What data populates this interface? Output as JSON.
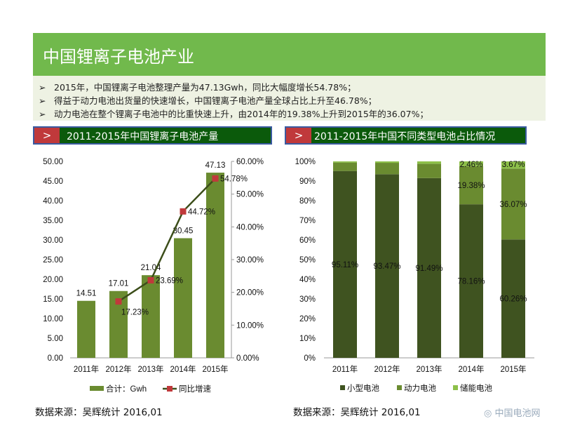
{
  "header": {
    "title": "中国锂离子电池产业"
  },
  "bullets": [
    "2015年，中国锂离子电池整理产量为47.13Gwh，同比大幅度增长54.78%；",
    "得益于动力电池出货量的快速增长，中国锂离子电池产量全球占比上升至46.78%；",
    "动力电池在整个锂离子电池中的比重快速上升，由2014年的19.38%上升到2015年的36.07%；"
  ],
  "bullet_icon": "arrow-right-icon",
  "section_marker": ">",
  "colors": {
    "title_green": "#71b94c",
    "header_green": "#0b5a0b",
    "marker_red": "#c0393b",
    "bar_green": "#6a8b30",
    "line": "#3c4e1a",
    "small": "#3f5320",
    "power": "#6a8b30",
    "storage": "#8dc049"
  },
  "chart_data": [
    {
      "type": "bar+line",
      "title": "2011-2015年中国锂离子电池产量",
      "categories": [
        "2011年",
        "2012年",
        "2013年",
        "2014年",
        "2015年"
      ],
      "series": [
        {
          "name": "合计：Gwh",
          "type": "bar",
          "axis": "left",
          "values": [
            14.51,
            17.01,
            21.04,
            30.45,
            47.13
          ],
          "labels": [
            "14.51",
            "17.01",
            "21.04",
            "30.45",
            "47.13"
          ]
        },
        {
          "name": "同比增速",
          "type": "line",
          "axis": "right",
          "values": [
            null,
            17.23,
            23.69,
            44.72,
            54.78
          ],
          "labels": [
            "",
            "17.23%",
            "23.69%",
            "44.72%",
            "54.78%"
          ]
        }
      ],
      "y_left": {
        "ylim": [
          0,
          50
        ],
        "ticks": [
          "0.00",
          "5.00",
          "10.00",
          "15.00",
          "20.00",
          "25.00",
          "30.00",
          "35.00",
          "40.00",
          "45.00",
          "50.00"
        ]
      },
      "y_right": {
        "ylim": [
          0,
          60
        ],
        "ticks": [
          "0.00%",
          "10.00%",
          "20.00%",
          "30.00%",
          "40.00%",
          "50.00%",
          "60.00%"
        ]
      },
      "legend": "bottom",
      "grid": false,
      "source": "数据来源：吴辉统计   2016,01"
    },
    {
      "type": "stacked-bar",
      "title": "2011-2015年中国不同类型电池占比情况",
      "categories": [
        "2011年",
        "2012年",
        "2013年",
        "2014年",
        "2015年"
      ],
      "series": [
        {
          "name": "小型电池",
          "values": [
            95.11,
            93.47,
            91.49,
            78.16,
            60.26
          ],
          "labels": [
            "95.11%",
            "93.47%",
            "91.49%",
            "78.16%",
            "60.26%"
          ]
        },
        {
          "name": "动力电池",
          "values": [
            4.3,
            5.8,
            7.3,
            19.38,
            36.07
          ],
          "labels": [
            "",
            "",
            "",
            "19.38%",
            "36.07%"
          ]
        },
        {
          "name": "储能电池",
          "values": [
            0.59,
            0.73,
            1.21,
            2.46,
            3.67
          ],
          "labels": [
            "",
            "",
            "",
            "2.46%",
            "3.67%"
          ]
        }
      ],
      "ylim": [
        0,
        100
      ],
      "ticks": [
        "0%",
        "10%",
        "20%",
        "30%",
        "40%",
        "50%",
        "60%",
        "70%",
        "80%",
        "90%",
        "100%"
      ],
      "legend": "bottom",
      "grid": false,
      "source": "数据来源：吴辉统计   2016,01"
    }
  ],
  "watermark": "中国电池网 www.itdcw.com"
}
